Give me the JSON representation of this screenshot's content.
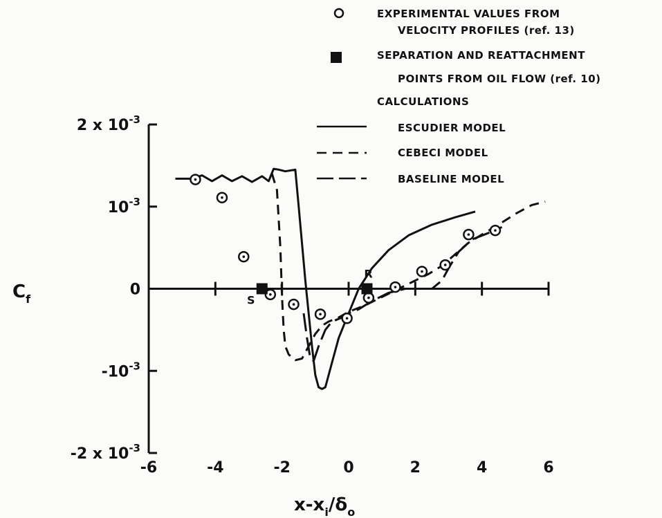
{
  "chart_data": {
    "type": "line",
    "xlabel": "x-x",
    "xlabel_sub": "i",
    "xlabel_rest": "/δ",
    "xlabel_sub2": "o",
    "ylabel": "C",
    "ylabel_sub": "f",
    "xlim": [
      -6,
      6
    ],
    "ylim": [
      -0.002,
      0.002
    ],
    "x_ticks": [
      -6,
      -4,
      -2,
      0,
      2,
      4,
      6
    ],
    "x_tick_labels": [
      "-6",
      "-4",
      "-2",
      "0",
      "2",
      "4",
      "6"
    ],
    "y_tick_values": [
      -0.002,
      -0.001,
      0,
      0.001,
      0.002
    ],
    "y_tick_labels": [
      {
        "main": "-2 x 10",
        "exp": "-3"
      },
      {
        "main": "-10",
        "exp": "-3"
      },
      {
        "main": "0",
        "exp": ""
      },
      {
        "main": "10",
        "exp": "-3"
      },
      {
        "main": "2 x 10",
        "exp": "-3"
      }
    ],
    "legend": {
      "experimental_line1": "EXPERIMENTAL VALUES FROM",
      "experimental_line2": "VELOCITY PROFILES (ref. 13)",
      "separation_line1": "SEPARATION AND REATTACHMENT",
      "separation_line2": "POINTS FROM OIL FLOW (ref. 10)",
      "calculations": "CALCULATIONS",
      "escudier": "ESCUDIER MODEL",
      "cebeci": "CEBECI MODEL",
      "baseline": "BASELINE MODEL"
    },
    "series": [
      {
        "name": "ESCUDIER MODEL",
        "style": "solid",
        "x": [
          -5.2,
          -4.7,
          -4.4,
          -4.1,
          -3.8,
          -3.5,
          -3.2,
          -2.9,
          -2.6,
          -2.4,
          -2.25,
          -2.1,
          -1.9,
          -1.6,
          -1.5,
          -1.4,
          -1.3,
          -1.2,
          -1.1,
          -1.0,
          -0.9,
          -0.8,
          -0.7,
          -0.5,
          -0.3,
          0.0,
          0.3,
          0.7,
          1.2,
          1.8,
          2.5,
          3.2,
          3.8
        ],
        "y": [
          0.00134,
          0.00134,
          0.00138,
          0.00131,
          0.00138,
          0.00131,
          0.00137,
          0.0013,
          0.00137,
          0.00131,
          0.00146,
          0.00145,
          0.00143,
          0.00145,
          0.001,
          0.00055,
          0.0001,
          -0.0003,
          -0.0007,
          -0.00105,
          -0.0012,
          -0.00122,
          -0.0012,
          -0.0009,
          -0.0006,
          -0.0003,
          0.0,
          0.00025,
          0.00047,
          0.00065,
          0.00078,
          0.00087,
          0.00094
        ]
      },
      {
        "name": "CEBECI MODEL",
        "style": "dash",
        "x": [
          -2.3,
          -2.15,
          -2.05,
          -2.0,
          -1.95,
          -1.9,
          -1.8,
          -1.6,
          -1.4,
          -1.2,
          -1.0,
          -0.8,
          -0.6,
          -0.3,
          0.0,
          0.5,
          1.0,
          1.5,
          2.0,
          2.4,
          2.8,
          3.2,
          3.6,
          4.0,
          4.5,
          5.0,
          5.5,
          5.9
        ],
        "y": [
          0.0014,
          0.0012,
          0.0005,
          -0.0001,
          -0.0005,
          -0.0007,
          -0.0008,
          -0.00087,
          -0.00085,
          -0.0007,
          -0.00055,
          -0.00045,
          -0.0004,
          -0.00035,
          -0.00028,
          -0.0002,
          -0.0001,
          0.0,
          0.0001,
          0.00018,
          0.00028,
          0.00042,
          0.00056,
          0.00066,
          0.00078,
          0.00091,
          0.00102,
          0.00106
        ]
      },
      {
        "name": "BASELINE MODEL",
        "style": "longdash",
        "x": [
          -1.35,
          -1.25,
          -1.15,
          -1.05,
          -0.9,
          -0.7,
          -0.5,
          -0.2,
          0.0,
          0.3,
          0.7,
          1.2,
          1.7,
          2.2,
          2.5,
          2.8,
          3.0,
          3.3,
          3.7,
          4.2,
          4.6
        ],
        "y": [
          -0.0003,
          -0.0006,
          -0.00085,
          -0.00088,
          -0.0007,
          -0.0005,
          -0.0004,
          -0.00035,
          -0.0003,
          -0.00025,
          -0.00015,
          -5e-05,
          0.0,
          0.0,
          0.0,
          0.0001,
          0.00025,
          0.00045,
          0.0006,
          0.00068,
          0.00075
        ]
      },
      {
        "name": "EXPERIMENTAL VALUES FROM VELOCITY PROFILES (ref. 13)",
        "style": "circle",
        "x": [
          -4.6,
          -3.8,
          -3.15,
          -2.35,
          -1.65,
          -0.85,
          -0.05,
          0.6,
          1.4,
          2.2,
          2.9,
          3.6,
          4.4
        ],
        "y": [
          0.00133,
          0.00111,
          0.00039,
          -7e-05,
          -0.00019,
          -0.00031,
          -0.00036,
          -0.00011,
          2e-05,
          0.00021,
          0.00029,
          0.00066,
          0.00071
        ]
      },
      {
        "name": "SEPARATION AND REATTACHMENT POINTS FROM OIL FLOW (ref. 10)",
        "style": "square",
        "x": [
          -2.6,
          0.55
        ],
        "y": [
          0.0,
          0.0
        ],
        "labels": [
          "S",
          "R"
        ]
      }
    ]
  }
}
